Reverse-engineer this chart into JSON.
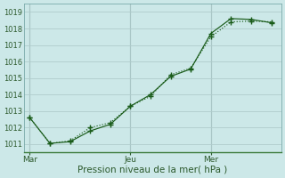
{
  "background_color": "#cce8e8",
  "grid_color": "#b0cccc",
  "line_color": "#1a5c1a",
  "xlabel": "Pression niveau de la mer( hPa )",
  "ylim": [
    1010.5,
    1019.5
  ],
  "yticks": [
    1011,
    1012,
    1013,
    1014,
    1015,
    1016,
    1017,
    1018,
    1019
  ],
  "xtick_labels": [
    "Mar",
    "Jeu",
    "Mer"
  ],
  "series1_x": [
    0,
    1,
    2,
    3,
    4,
    5,
    6,
    7,
    8,
    9,
    10,
    11,
    12
  ],
  "series1_y": [
    1012.6,
    1011.05,
    1011.15,
    1011.8,
    1012.2,
    1013.3,
    1014.0,
    1015.1,
    1015.55,
    1017.7,
    1018.6,
    1018.55,
    1018.35
  ],
  "series2_x": [
    0,
    1,
    2,
    3,
    4,
    5,
    6,
    7,
    8,
    9,
    10,
    11,
    12
  ],
  "series2_y": [
    1012.6,
    1011.05,
    1011.2,
    1012.0,
    1012.3,
    1013.3,
    1013.9,
    1015.2,
    1015.6,
    1017.5,
    1018.4,
    1018.45,
    1018.4
  ],
  "xtick_pos": [
    0,
    5,
    9
  ],
  "xlim": [
    -0.3,
    12.5
  ],
  "vlines": [
    0,
    5,
    9
  ]
}
